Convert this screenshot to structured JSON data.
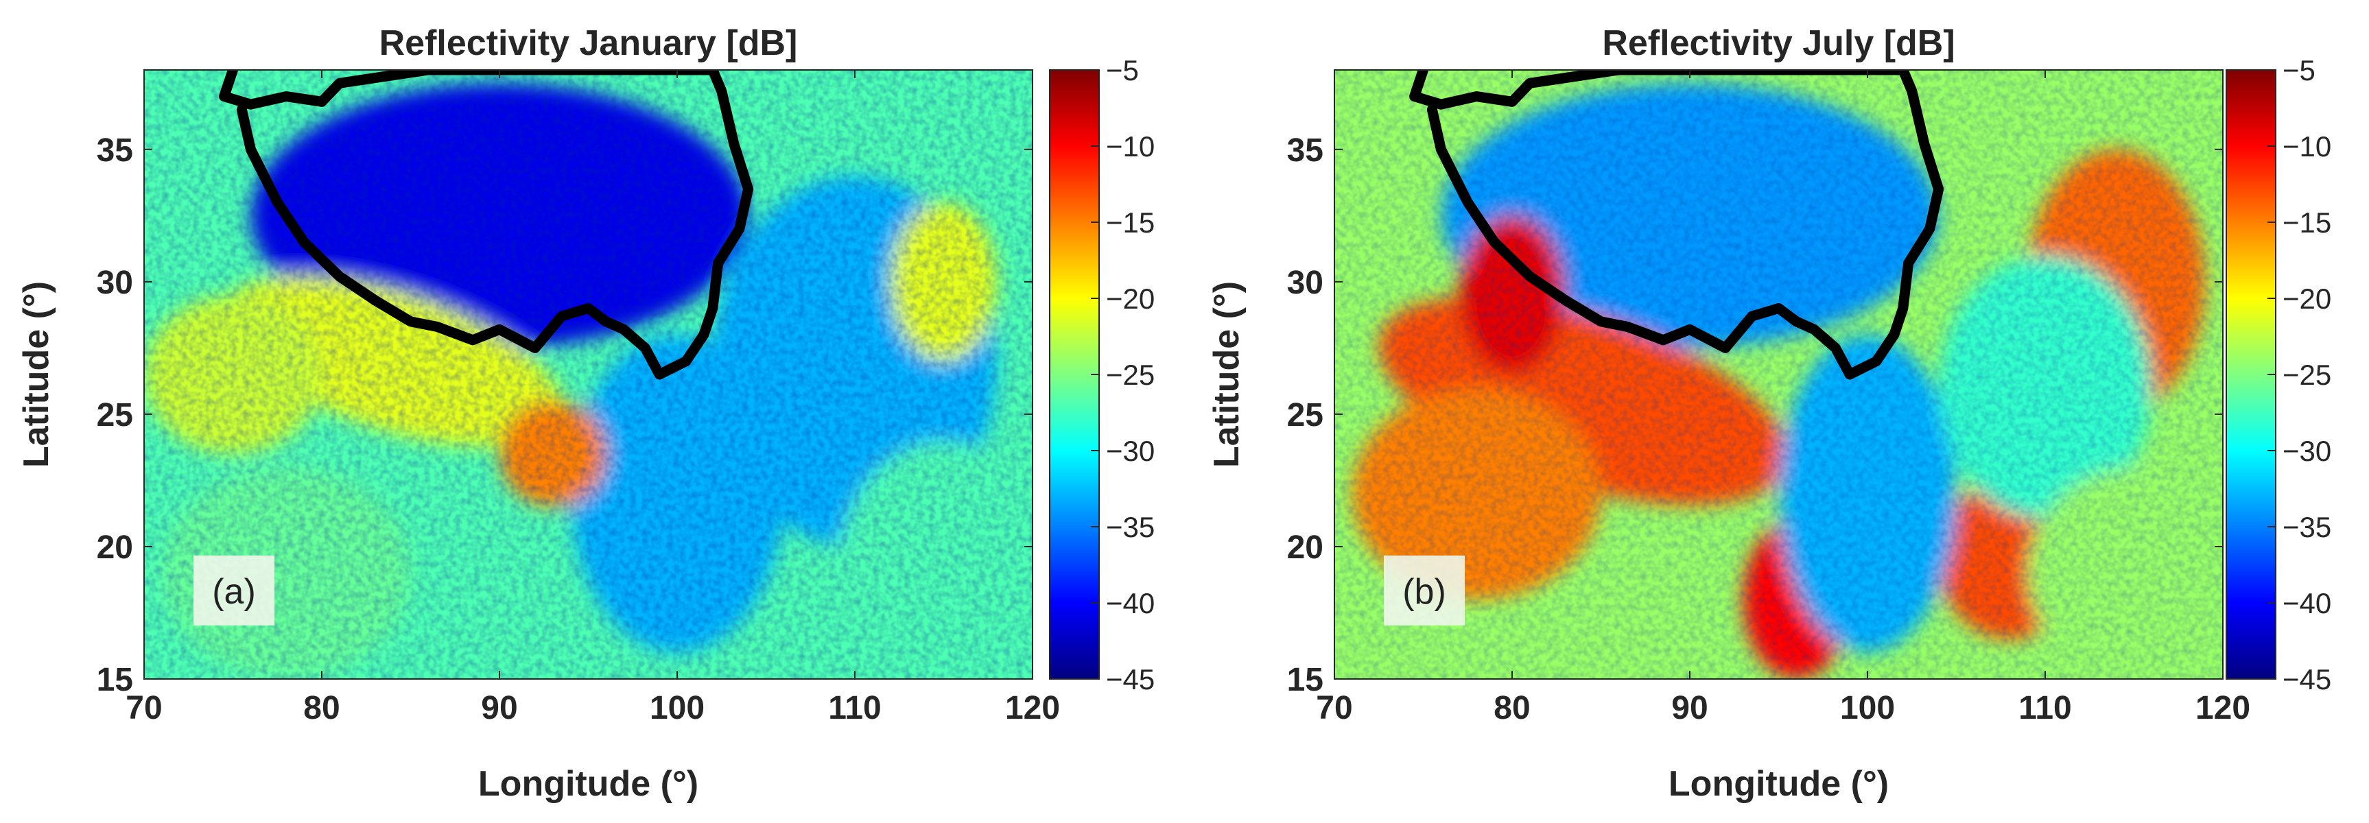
{
  "chart_data": [
    {
      "type": "heatmap",
      "title": "Reflectivity January [dB]",
      "xlabel": "Longitude (°)",
      "ylabel": "Latitude (°)",
      "xlim": [
        70,
        120
      ],
      "ylim": [
        15,
        38
      ],
      "xticks": [
        70,
        80,
        90,
        100,
        110,
        120
      ],
      "yticks": [
        15,
        20,
        25,
        30,
        35
      ],
      "panel_label": "(a)",
      "colorbar": {
        "colormap": "jet",
        "range": [
          -45,
          -5
        ],
        "ticks": [
          -5,
          -10,
          -15,
          -20,
          -25,
          -30,
          -35,
          -40,
          -45
        ]
      },
      "outline": {
        "color": "#000000",
        "points": [
          [
            75,
            38
          ],
          [
            74.5,
            37
          ],
          [
            76,
            36.7
          ],
          [
            78,
            37
          ],
          [
            80,
            36.8
          ],
          [
            81,
            37.5
          ],
          [
            82,
            37.6
          ],
          [
            84,
            37.8
          ],
          [
            86,
            38
          ],
          [
            91,
            38
          ],
          [
            102,
            38
          ],
          [
            102.5,
            37.2
          ],
          [
            103.2,
            35.2
          ],
          [
            104,
            33.5
          ],
          [
            103.5,
            32
          ],
          [
            102.3,
            30.7
          ],
          [
            102,
            29
          ],
          [
            101.5,
            28
          ],
          [
            100.5,
            27
          ],
          [
            99,
            26.5
          ],
          [
            98.2,
            27.5
          ],
          [
            97,
            28.2
          ],
          [
            96,
            28.5
          ],
          [
            95,
            29
          ],
          [
            93.5,
            28.7
          ],
          [
            92,
            27.5
          ],
          [
            90,
            28.2
          ],
          [
            88.5,
            27.8
          ],
          [
            86.5,
            28.3
          ],
          [
            85,
            28.5
          ],
          [
            83,
            29.3
          ],
          [
            81,
            30.2
          ],
          [
            79,
            31.5
          ],
          [
            77.5,
            33
          ],
          [
            76,
            35
          ],
          [
            75.5,
            36.5
          ]
        ]
      }
    },
    {
      "type": "heatmap",
      "title": "Reflectivity July [dB]",
      "xlabel": "Longitude (°)",
      "ylabel": "Latitude (°)",
      "xlim": [
        70,
        120
      ],
      "ylim": [
        15,
        38
      ],
      "xticks": [
        70,
        80,
        90,
        100,
        110,
        120
      ],
      "yticks": [
        15,
        20,
        25,
        30,
        35
      ],
      "panel_label": "(b)",
      "colorbar": {
        "colormap": "jet",
        "range": [
          -45,
          -5
        ],
        "ticks": [
          -5,
          -10,
          -15,
          -20,
          -25,
          -30,
          -35,
          -40,
          -45
        ]
      },
      "outline": {
        "color": "#000000",
        "points": [
          [
            75,
            38
          ],
          [
            74.5,
            37
          ],
          [
            76,
            36.7
          ],
          [
            78,
            37
          ],
          [
            80,
            36.8
          ],
          [
            81,
            37.5
          ],
          [
            82,
            37.6
          ],
          [
            84,
            37.8
          ],
          [
            86,
            38
          ],
          [
            91,
            38
          ],
          [
            102,
            38
          ],
          [
            102.5,
            37.2
          ],
          [
            103.2,
            35.2
          ],
          [
            104,
            33.5
          ],
          [
            103.5,
            32
          ],
          [
            102.3,
            30.7
          ],
          [
            102,
            29
          ],
          [
            101.5,
            28
          ],
          [
            100.5,
            27
          ],
          [
            99,
            26.5
          ],
          [
            98.2,
            27.5
          ],
          [
            97,
            28.2
          ],
          [
            96,
            28.5
          ],
          [
            95,
            29
          ],
          [
            93.5,
            28.7
          ],
          [
            92,
            27.5
          ],
          [
            90,
            28.2
          ],
          [
            88.5,
            27.8
          ],
          [
            86.5,
            28.3
          ],
          [
            85,
            28.5
          ],
          [
            83,
            29.3
          ],
          [
            81,
            30.2
          ],
          [
            79,
            31.5
          ],
          [
            77.5,
            33
          ],
          [
            76,
            35
          ],
          [
            75.5,
            36.5
          ]
        ]
      }
    }
  ]
}
